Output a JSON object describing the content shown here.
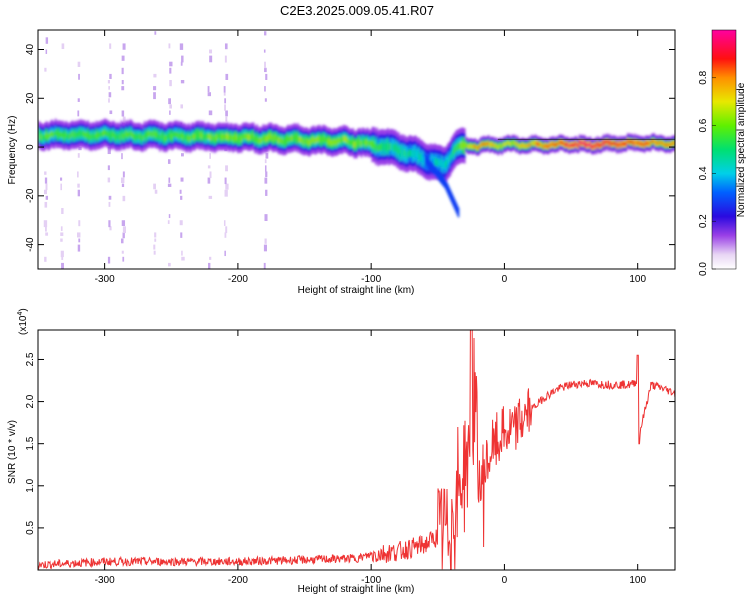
{
  "chart_data": [
    {
      "type": "heatmap",
      "title": "C2E3.2025.009.05.41.R07",
      "xlabel": "Height of straight line (km)",
      "ylabel": "Frequency (Hz)",
      "xlim": [
        -350,
        128
      ],
      "ylim": [
        -50,
        48
      ],
      "xticks": [
        -300,
        -200,
        -100,
        0,
        100
      ],
      "yticks": [
        -40,
        -20,
        0,
        20,
        40
      ],
      "colorbar": {
        "label": "Normalized spectral amplitude",
        "range": [
          0,
          1
        ],
        "ticks": [
          "0.0",
          "0.2",
          "0.4",
          "0.6",
          "0.8"
        ]
      },
      "ridge": {
        "x": [
          -350,
          -300,
          -250,
          -200,
          -150,
          -110,
          -90,
          -70,
          -55,
          -45,
          -40,
          -35,
          -20,
          0,
          20,
          60,
          90,
          128
        ],
        "frequency": [
          5,
          5,
          4.5,
          4,
          3,
          2,
          0,
          -3,
          -6,
          -8,
          -2,
          0,
          0.5,
          1,
          1,
          1,
          1.5,
          1.5
        ],
        "amplitude": [
          0.5,
          0.5,
          0.5,
          0.55,
          0.55,
          0.55,
          0.45,
          0.4,
          0.35,
          0.4,
          0.4,
          0.5,
          0.75,
          0.6,
          0.7,
          0.9,
          0.8,
          0.7
        ]
      },
      "side_branch": {
        "x": [
          -60,
          -45,
          -35
        ],
        "frequency": [
          -5,
          -15,
          -27
        ]
      }
    },
    {
      "type": "line",
      "title": "",
      "xlabel": "Height of straight line (km)",
      "ylabel": "SNR (10 * v/v)",
      "scale_note": "(x10",
      "scale_exponent": "4",
      "xlim": [
        -350,
        128
      ],
      "ylim": [
        0,
        2.85
      ],
      "xticks": [
        -300,
        -200,
        -100,
        0,
        100
      ],
      "yticks": [
        "0.5",
        "1.0",
        "1.5",
        "2.0",
        "2.5"
      ],
      "color": "#ee3333",
      "series": [
        {
          "name": "",
          "x": [
            -350,
            -300,
            -250,
            -200,
            -150,
            -110,
            -100,
            -80,
            -60,
            -50,
            -40,
            -35,
            -30,
            -25,
            -22,
            -20,
            -15,
            -10,
            0,
            10,
            20,
            30,
            40,
            50,
            60,
            80,
            95,
            100,
            101,
            110,
            120,
            128
          ],
          "y": [
            0.06,
            0.1,
            0.1,
            0.1,
            0.12,
            0.14,
            0.18,
            0.22,
            0.3,
            0.4,
            0.55,
            0.9,
            1.2,
            1.5,
            2.2,
            1.0,
            1.1,
            1.4,
            1.6,
            1.7,
            1.9,
            2.05,
            2.15,
            2.2,
            2.22,
            2.2,
            2.2,
            2.25,
            1.6,
            2.2,
            2.15,
            2.1
          ]
        }
      ]
    }
  ]
}
